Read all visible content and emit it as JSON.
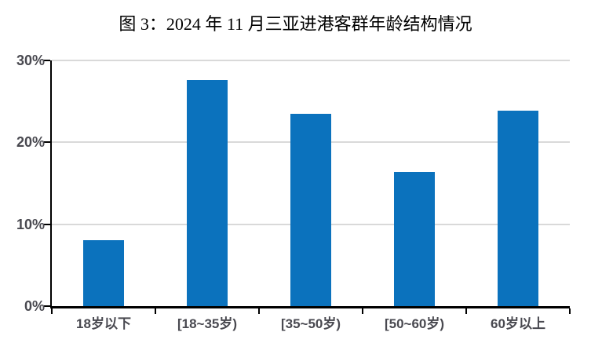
{
  "title": "图 3：2024 年 11 月三亚进港客群年龄结构情况",
  "chart_data": {
    "type": "bar",
    "title": "图 3：2024 年 11 月三亚进港客群年龄结构情况",
    "categories": [
      "18岁以下",
      "[18~35岁)",
      "[35~50岁)",
      "[50~60岁)",
      "60岁以上"
    ],
    "values": [
      8.1,
      27.6,
      23.5,
      16.4,
      23.9
    ],
    "unit": "%",
    "xlabel": "",
    "ylabel": "",
    "ylim": [
      0,
      30
    ],
    "yticks": [
      0,
      10,
      20,
      30
    ],
    "ytick_labels": [
      "0%",
      "10%",
      "20%",
      "30%"
    ],
    "grid": true,
    "legend": false,
    "colors": {
      "bar": "#0b72bd",
      "grid": "#d9d9d9",
      "axis": "#000000",
      "tick_label": "#494950",
      "title": "#000000",
      "background": "#ffffff"
    }
  }
}
